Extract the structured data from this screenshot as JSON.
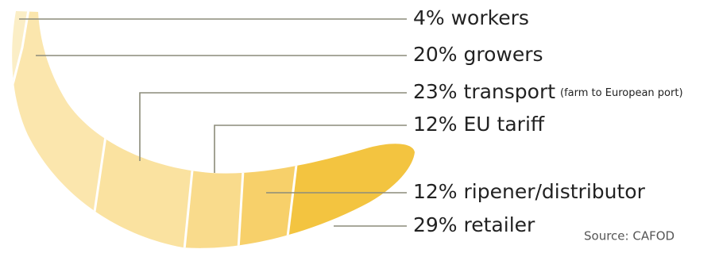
{
  "segments": [
    {
      "label": "4% workers"
    },
    {
      "label": "20% growers"
    },
    {
      "label": "23% transport",
      "note": "(farm to European port)"
    },
    {
      "label": "12% EU tariff"
    },
    {
      "label": "12% ripener/distributor"
    },
    {
      "label": "29% retailer"
    }
  ],
  "source": "Source: CAFOD"
}
